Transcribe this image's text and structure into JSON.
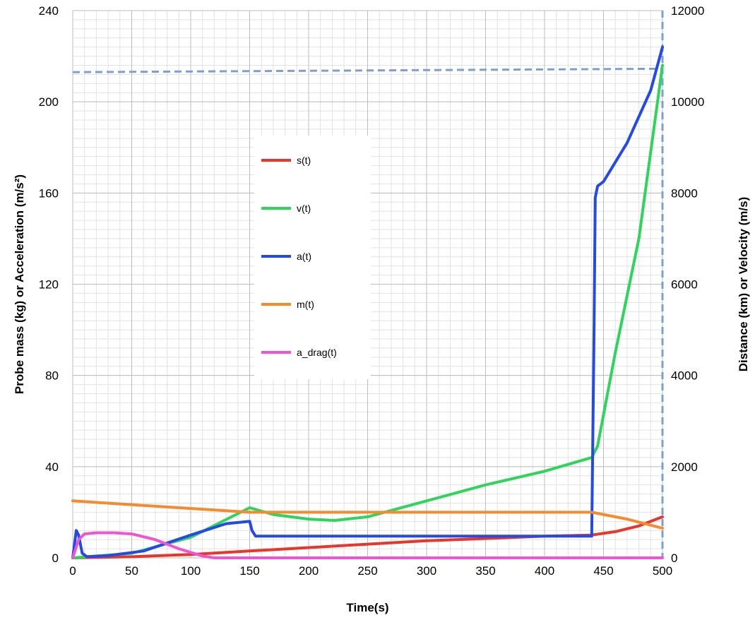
{
  "chart_data": {
    "type": "line",
    "xlabel": "Time(s)",
    "ylabel_left": "Probe mass (kg) or Acceleration (m/s²)",
    "ylabel_right": "Distance (km) or Velocity (m/s)",
    "xlim": [
      0,
      500
    ],
    "ylim_left": [
      0,
      240
    ],
    "ylim_right": [
      0,
      12000
    ],
    "xticks": [
      0,
      50,
      100,
      150,
      200,
      250,
      300,
      350,
      400,
      450,
      500
    ],
    "yticks_left": [
      0,
      40,
      80,
      120,
      160,
      200,
      240
    ],
    "yticks_right": [
      0,
      2000,
      4000,
      6000,
      8000,
      10000,
      12000
    ],
    "grid": true,
    "legend_position": "center-left",
    "series": [
      {
        "name": "s(t)",
        "axis": "left",
        "color": "#e8372a",
        "x": [
          0,
          50,
          100,
          150,
          200,
          250,
          300,
          350,
          400,
          440,
          460,
          480,
          500
        ],
        "y": [
          0,
          0.5,
          1.5,
          3,
          4.5,
          6,
          7.5,
          8.5,
          9.5,
          10,
          11.5,
          14,
          18
        ]
      },
      {
        "name": "v(t)",
        "axis": "right",
        "color": "#2fd45a",
        "x": [
          0,
          10,
          50,
          100,
          150,
          170,
          200,
          222,
          250,
          300,
          350,
          400,
          440,
          445,
          460,
          480,
          500
        ],
        "y": [
          0,
          20,
          100,
          450,
          1100,
          950,
          850,
          820,
          900,
          1250,
          1600,
          1900,
          2200,
          2450,
          4500,
          7000,
          10800
        ]
      },
      {
        "name": "a(t)",
        "axis": "left",
        "color": "#2449e6",
        "x": [
          0,
          3,
          5,
          8,
          12,
          30,
          60,
          100,
          130,
          150,
          152,
          155,
          200,
          300,
          400,
          440,
          442,
          443,
          445,
          450,
          470,
          490,
          500
        ],
        "y": [
          0,
          12,
          10,
          2,
          0.5,
          1,
          3,
          10,
          15,
          16,
          12,
          9.5,
          9.5,
          9.5,
          9.5,
          9.5,
          100,
          158,
          163,
          165,
          182,
          205,
          224
        ]
      },
      {
        "name": "m(t)",
        "axis": "left",
        "color": "#f58a2e",
        "x": [
          0,
          150,
          440,
          450,
          470,
          500
        ],
        "y": [
          25,
          20,
          20,
          19,
          17,
          13
        ]
      },
      {
        "name": "a_drag(t)",
        "axis": "left",
        "color": "#ee55d0",
        "x": [
          0,
          5,
          10,
          20,
          35,
          50,
          70,
          90,
          110,
          120,
          200,
          300,
          400,
          500
        ],
        "y": [
          0,
          8,
          10.5,
          11,
          11,
          10.5,
          8,
          4,
          0.8,
          0,
          0,
          0,
          0,
          0
        ]
      }
    ],
    "reference_lines": [
      {
        "orientation": "horizontal",
        "axis": "left",
        "y0": 213,
        "y1": 214.5,
        "color": "#7d9fd6",
        "style": "dashed"
      },
      {
        "orientation": "vertical",
        "axis": "x",
        "x": 500,
        "color": "#7d9fd6",
        "style": "dashed"
      }
    ]
  }
}
